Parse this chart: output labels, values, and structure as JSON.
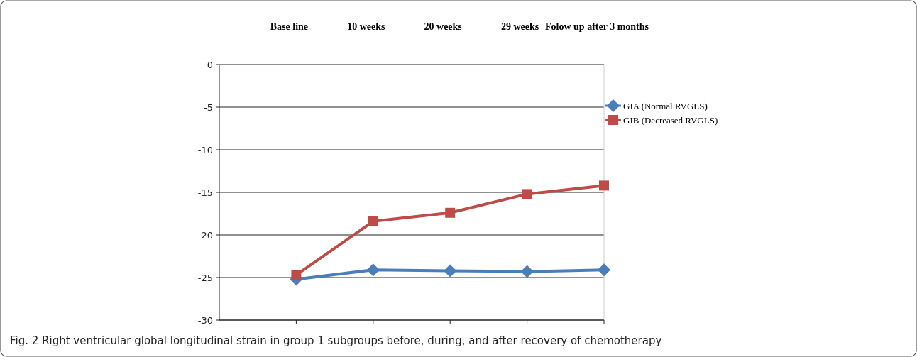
{
  "chart_data": {
    "type": "line",
    "categories": [
      "Base line",
      "10 weeks",
      "20 weeks",
      "29 weeks",
      "Folow up after 3 months"
    ],
    "series": [
      {
        "name": "GIA (Normal RVGLS)",
        "color": "#4a7ebb",
        "marker": "diamond",
        "values": [
          -25.2,
          -24.1,
          -24.2,
          -24.3,
          -24.1
        ]
      },
      {
        "name": "GIB (Decreased RVGLS)",
        "color": "#be4b48",
        "marker": "square",
        "values": [
          -24.7,
          -18.4,
          -17.4,
          -15.2,
          -14.2
        ]
      }
    ],
    "ylim": [
      -30,
      0
    ],
    "yticks": [
      -30,
      -25,
      -20,
      -15,
      -10,
      -5,
      0
    ],
    "grid": "y",
    "legend": "right",
    "annotations": [
      "Fig. 2 Right ventricular global longitudinal strain in group 1 subgroups before, during, and after recovery of chemotherapy"
    ]
  }
}
